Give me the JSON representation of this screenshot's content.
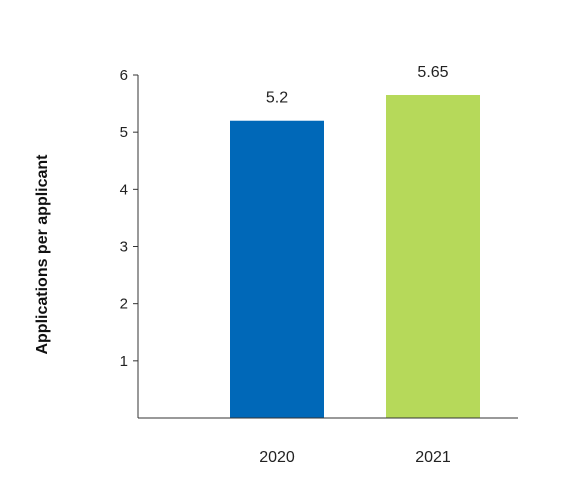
{
  "chart_data": {
    "type": "bar",
    "categories": [
      "2020",
      "2021"
    ],
    "values": [
      5.2,
      5.65
    ],
    "data_labels": [
      "5.2",
      "5.65"
    ],
    "colors": [
      "#0068b8",
      "#b6d95a"
    ],
    "title": "",
    "xlabel": "",
    "ylabel": "Applications per applicant",
    "ylim": [
      0,
      6
    ],
    "yticks": [
      1,
      2,
      3,
      4,
      5,
      6
    ],
    "grid": false,
    "legend": "none"
  }
}
